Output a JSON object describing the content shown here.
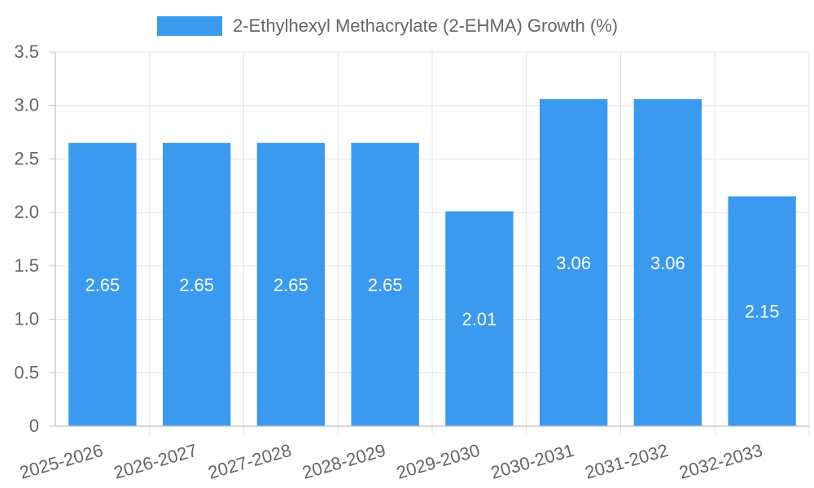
{
  "chart_data": {
    "type": "bar",
    "title": "",
    "xlabel": "",
    "ylabel": "",
    "categories": [
      "2025-2026",
      "2026-2027",
      "2027-2028",
      "2028-2029",
      "2029-2030",
      "2030-2031",
      "2031-2032",
      "2032-2033"
    ],
    "series": [
      {
        "name": "2-Ethylhexyl Methacrylate (2-EHMA) Growth (%)",
        "values": [
          2.65,
          2.65,
          2.65,
          2.65,
          2.01,
          3.06,
          3.06,
          2.15
        ],
        "color": "#3a9af0"
      }
    ],
    "ylim": [
      0,
      3.5
    ],
    "yticks": [
      "0",
      "0.5",
      "1.0",
      "1.5",
      "2.0",
      "2.5",
      "3.0",
      "3.5"
    ],
    "grid": true,
    "legend": "top-center"
  }
}
